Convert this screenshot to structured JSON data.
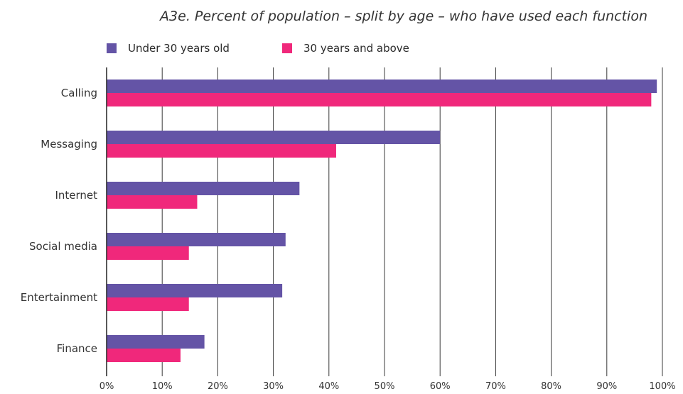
{
  "chart_data": {
    "type": "bar",
    "orientation": "horizontal",
    "title": "A3e. Percent of population – split by age – who have used each function",
    "categories": [
      "Calling",
      "Messaging",
      "Internet",
      "Social media",
      "Entertainment",
      "Finance"
    ],
    "series": [
      {
        "name": "Under 30 years old",
        "color": "#6454a6",
        "values": [
          99,
          60,
          34.7,
          32.2,
          31.6,
          17.6
        ]
      },
      {
        "name": "30 years and above",
        "color": "#f0287b",
        "values": [
          98,
          41.3,
          16.3,
          14.8,
          14.8,
          13.3
        ]
      }
    ],
    "xlim": [
      0,
      100
    ],
    "x_ticks": [
      "0%",
      "10%",
      "20%",
      "30%",
      "40%",
      "50%",
      "60%",
      "70%",
      "80%",
      "90%",
      "100%"
    ],
    "grid": "vertical",
    "legend_position": "top-left"
  }
}
